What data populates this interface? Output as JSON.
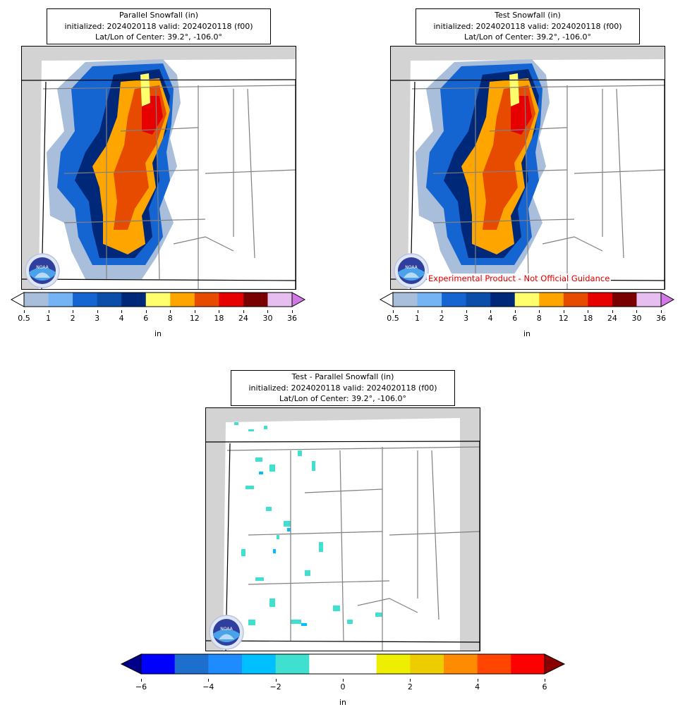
{
  "panels": [
    {
      "id": "parallel",
      "title_lines": [
        "Parallel Snowfall (in)",
        "initialized: 2024020118 valid: 2024020118 (f00)",
        "Lat/Lon of Center: 39.2°, -106.0°"
      ],
      "disclaimer": ""
    },
    {
      "id": "test",
      "title_lines": [
        "Test Snowfall (in)",
        "initialized: 2024020118 valid: 2024020118 (f00)",
        "Lat/Lon of Center: 39.2°, -106.0°"
      ],
      "disclaimer": "Experimental Product - Not Official Guidance"
    },
    {
      "id": "diff",
      "title_lines": [
        "Test - Parallel Snowfall (in)",
        "initialized: 2024020118 valid: 2024020118 (f00)",
        "Lat/Lon of Center: 39.2°, -106.0°"
      ],
      "disclaimer": ""
    }
  ],
  "logo_text": "NOAA",
  "snow_colorbar": {
    "unit": "in",
    "ticks": [
      "0.5",
      "1",
      "2",
      "3",
      "4",
      "6",
      "8",
      "12",
      "18",
      "24",
      "30",
      "36"
    ],
    "colors": [
      "#a8bedb",
      "#74b4f4",
      "#1464d2",
      "#0a4eaa",
      "#002878",
      "#ffff6e",
      "#ffa500",
      "#e64b00",
      "#e60000",
      "#780000",
      "#e6bef0"
    ],
    "under_color": "#ffffff",
    "over_color": "#d278e6"
  },
  "diff_colorbar": {
    "unit": "in",
    "ticks": [
      "−6",
      "−4",
      "−2",
      "0",
      "2",
      "4",
      "6"
    ],
    "colors": [
      "#0000ff",
      "#1e6ecd",
      "#1e8cff",
      "#00bfff",
      "#40e0d0",
      "#ffffff",
      "#ffffff",
      "#eeee00",
      "#eecd00",
      "#ff8c00",
      "#ff4500",
      "#ff0000"
    ],
    "under_color": "#00008b",
    "over_color": "#8b0000"
  }
}
